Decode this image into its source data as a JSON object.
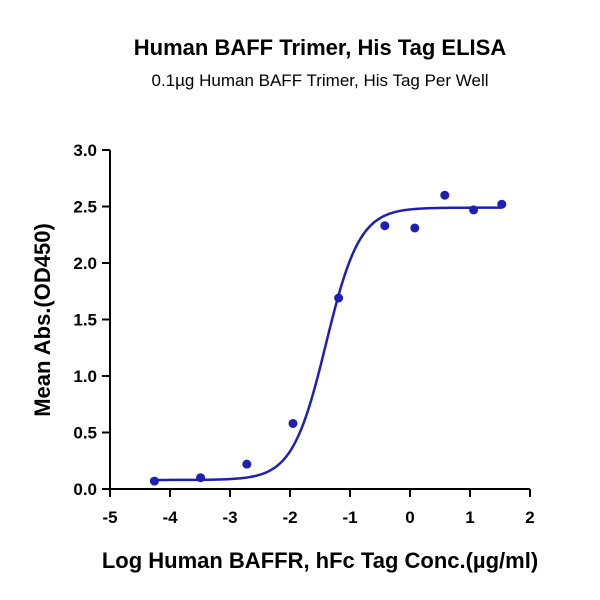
{
  "chart_data": {
    "type": "scatter",
    "title": "Human BAFF Trimer, His Tag ELISA",
    "subtitle": "0.1µg Human BAFF Trimer, His Tag Per Well",
    "xlabel": "Log Human BAFFR, hFc Tag Conc.(µg/ml)",
    "ylabel": "Mean Abs.(OD450)",
    "xlim": [
      -5,
      2
    ],
    "ylim": [
      0,
      3.0
    ],
    "x_ticks": [
      "-5",
      "-4",
      "-3",
      "-2",
      "-1",
      "0",
      "1",
      "2"
    ],
    "y_ticks": [
      "0.0",
      "0.5",
      "1.0",
      "1.5",
      "2.0",
      "2.5",
      "3.0"
    ],
    "grid": false,
    "series": [
      {
        "x": [
          -4.26,
          -3.49,
          -2.72,
          -1.95,
          -1.19,
          -0.42,
          0.08,
          0.58,
          1.06,
          1.53
        ],
        "y": [
          0.07,
          0.1,
          0.22,
          0.58,
          1.69,
          2.33,
          2.31,
          2.6,
          2.47,
          2.52
        ],
        "color": "#1f1fb3"
      }
    ],
    "fit_curve": {
      "model": "4PL",
      "bottom": 0.08,
      "top": 2.49,
      "ec50_log": -1.4,
      "hill": 1.55,
      "color": "#1f1fb3"
    }
  }
}
